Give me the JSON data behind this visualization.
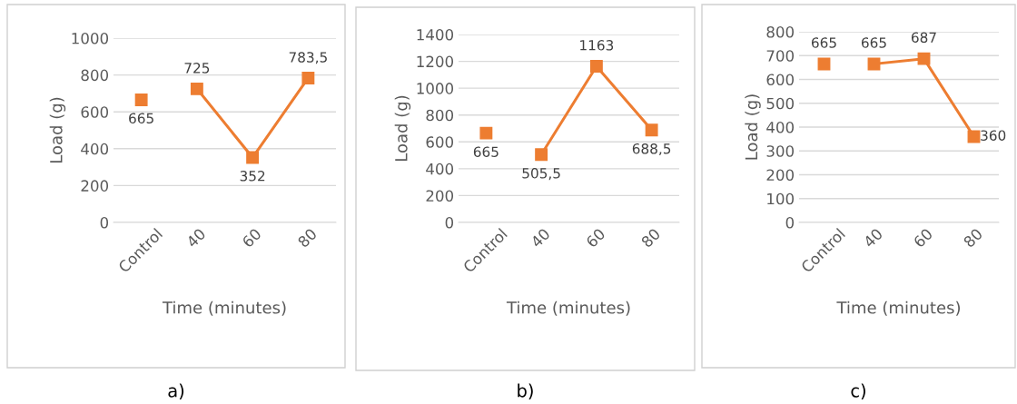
{
  "chart_data": [
    {
      "type": "line",
      "categories": [
        "Control",
        "40",
        "60",
        "80"
      ],
      "xlabel": "Time (minutes)",
      "ylabel": "Load (g)",
      "ylim": [
        0,
        1000
      ],
      "yticks": [
        0,
        200,
        400,
        600,
        800,
        1000
      ],
      "grid": "y",
      "marker": "square",
      "annotations": [
        "a)"
      ],
      "series": [
        {
          "type": "scatter",
          "color": "#ed7d31",
          "values": [
            665,
            null,
            null,
            null
          ],
          "value_labels": [
            "665",
            null,
            null,
            null
          ]
        },
        {
          "type": "line",
          "color": "#ed7d31",
          "values": [
            null,
            725,
            352,
            783.5
          ],
          "value_labels": [
            null,
            "725",
            "352",
            "783,5"
          ]
        }
      ]
    },
    {
      "type": "line",
      "categories": [
        "Control",
        "40",
        "60",
        "80"
      ],
      "xlabel": "Time (minutes)",
      "ylabel": "Load (g)",
      "ylim": [
        0,
        1400
      ],
      "yticks": [
        0,
        200,
        400,
        600,
        800,
        1000,
        1200,
        1400
      ],
      "grid": "y",
      "marker": "square",
      "annotations": [
        "b)"
      ],
      "series": [
        {
          "type": "scatter",
          "color": "#ed7d31",
          "values": [
            665,
            null,
            null,
            null
          ],
          "value_labels": [
            "665",
            null,
            null,
            null
          ]
        },
        {
          "type": "line",
          "color": "#ed7d31",
          "values": [
            null,
            505.5,
            1163,
            688.5
          ],
          "value_labels": [
            null,
            "505,5",
            "1163",
            "688,5"
          ]
        }
      ]
    },
    {
      "type": "line",
      "categories": [
        "Control",
        "40",
        "60",
        "80"
      ],
      "xlabel": "Time (minutes)",
      "ylabel": "Load (g)",
      "ylim": [
        0,
        800
      ],
      "yticks": [
        0,
        100,
        200,
        300,
        400,
        500,
        600,
        700,
        800
      ],
      "grid": "y",
      "marker": "square",
      "annotations": [
        "c)"
      ],
      "series": [
        {
          "type": "scatter",
          "color": "#ed7d31",
          "values": [
            665,
            null,
            null,
            null
          ],
          "value_labels": [
            "665",
            null,
            null,
            null
          ]
        },
        {
          "type": "line",
          "color": "#ed7d31",
          "values": [
            null,
            665,
            687,
            360
          ],
          "value_labels": [
            null,
            "665",
            "687",
            "360"
          ]
        }
      ]
    }
  ]
}
